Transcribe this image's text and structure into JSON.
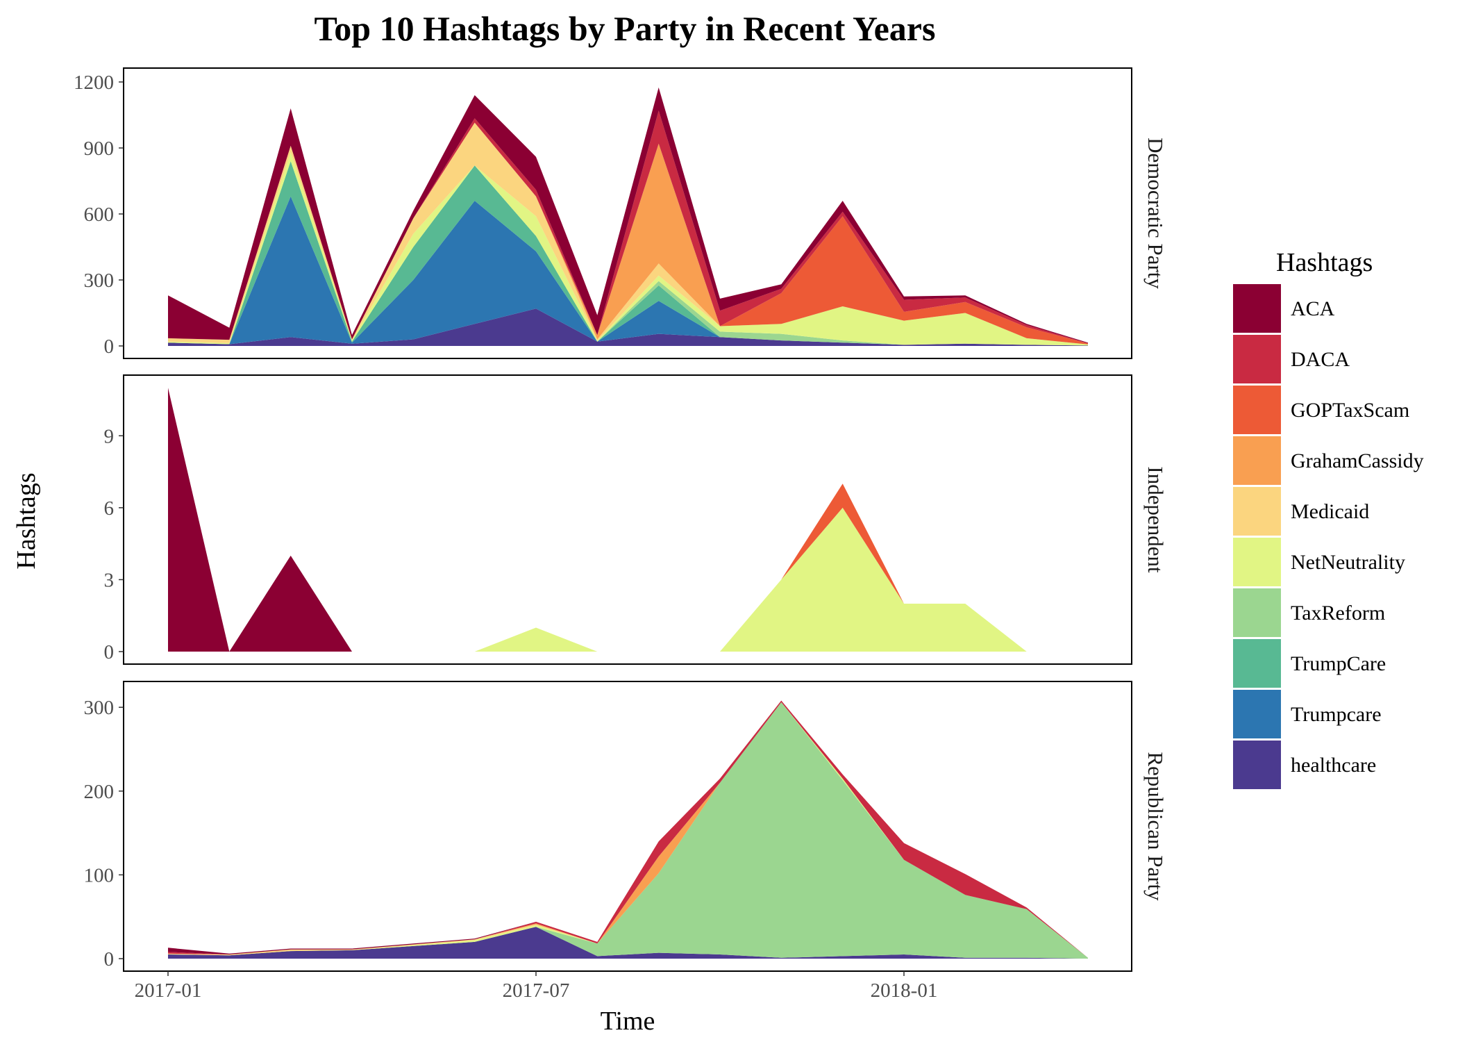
{
  "chart_data": {
    "type": "area",
    "stacked": true,
    "title": "Top 10 Hashtags by Party in Recent Years",
    "xlabel": "Time",
    "ylabel": "Hashtags",
    "x": [
      "2017-01",
      "2017-02",
      "2017-03",
      "2017-04",
      "2017-05",
      "2017-06",
      "2017-07",
      "2017-08",
      "2017-09",
      "2017-10",
      "2017-11",
      "2017-12",
      "2018-01",
      "2018-02",
      "2018-03",
      "2018-04"
    ],
    "x_ticks": [
      "2017-01",
      "2017-07",
      "2018-01"
    ],
    "legend": {
      "title": "Hashtags",
      "placement": "right"
    },
    "grid": false,
    "series_order": [
      "ACA",
      "DACA",
      "GOPTaxScam",
      "GrahamCassidy",
      "Medicaid",
      "NetNeutrality",
      "TaxReform",
      "TrumpCare",
      "Trumpcare",
      "healthcare"
    ],
    "colors": {
      "ACA": "#8b0033",
      "DACA": "#c92a42",
      "GOPTaxScam": "#ed5a36",
      "GrahamCassidy": "#f99f51",
      "Medicaid": "#fbd57f",
      "NetNeutrality": "#e1f584",
      "TaxReform": "#9bd690",
      "TrumpCare": "#58b993",
      "Trumpcare": "#2c76b1",
      "healthcare": "#4b3a8f"
    },
    "panels": [
      {
        "name": "Democratic Party",
        "ylim": [
          0,
          1260
        ],
        "yticks": [
          0,
          300,
          600,
          900,
          1200
        ],
        "series": [
          {
            "name": "healthcare",
            "values": [
              15,
              8,
              40,
              10,
              30,
              100,
              170,
              20,
              55,
              40,
              25,
              15,
              5,
              10,
              5,
              2
            ]
          },
          {
            "name": "Trumpcare",
            "values": [
              0,
              0,
              640,
              5,
              270,
              560,
              260,
              0,
              150,
              0,
              0,
              0,
              0,
              0,
              0,
              0
            ]
          },
          {
            "name": "TrumpCare",
            "values": [
              0,
              0,
              160,
              5,
              150,
              160,
              70,
              0,
              70,
              0,
              0,
              0,
              0,
              0,
              0,
              0
            ]
          },
          {
            "name": "TaxReform",
            "values": [
              0,
              0,
              0,
              0,
              0,
              0,
              0,
              0,
              20,
              25,
              30,
              10,
              0,
              0,
              0,
              0
            ]
          },
          {
            "name": "NetNeutrality",
            "values": [
              5,
              5,
              40,
              5,
              60,
              0,
              90,
              5,
              25,
              25,
              45,
              155,
              110,
              140,
              30,
              5
            ]
          },
          {
            "name": "Medicaid",
            "values": [
              15,
              15,
              30,
              5,
              70,
              195,
              90,
              5,
              55,
              0,
              0,
              0,
              0,
              0,
              0,
              0
            ]
          },
          {
            "name": "GrahamCassidy",
            "values": [
              0,
              0,
              0,
              0,
              0,
              0,
              0,
              20,
              545,
              0,
              0,
              0,
              0,
              0,
              0,
              0
            ]
          },
          {
            "name": "GOPTaxScam",
            "values": [
              0,
              0,
              0,
              0,
              0,
              0,
              0,
              0,
              0,
              0,
              140,
              410,
              40,
              50,
              50,
              5
            ]
          },
          {
            "name": "DACA",
            "values": [
              0,
              0,
              0,
              0,
              0,
              20,
              30,
              0,
              150,
              70,
              20,
              20,
              55,
              20,
              10,
              0
            ]
          },
          {
            "name": "ACA",
            "values": [
              195,
              55,
              170,
              20,
              35,
              105,
              150,
              90,
              105,
              55,
              20,
              50,
              15,
              10,
              5,
              3
            ]
          }
        ]
      },
      {
        "name": "Independent",
        "ylim": [
          0,
          11.5
        ],
        "yticks": [
          0,
          3,
          6,
          9
        ],
        "series": [
          {
            "name": "NetNeutrality",
            "values": [
              0,
              0,
              0,
              0,
              0,
              0,
              1,
              0,
              0,
              0,
              3,
              6,
              2,
              2,
              0,
              0
            ]
          },
          {
            "name": "GOPTaxScam",
            "values": [
              0,
              0,
              0,
              0,
              0,
              0,
              0,
              0,
              0,
              0,
              0,
              1,
              0,
              0,
              0,
              0
            ]
          },
          {
            "name": "ACA",
            "values": [
              11,
              0,
              4,
              0,
              0,
              0,
              0,
              0,
              0,
              0,
              0,
              0,
              0,
              0,
              0,
              0
            ]
          }
        ]
      },
      {
        "name": "Republican Party",
        "ylim": [
          0,
          330
        ],
        "yticks": [
          0,
          100,
          200,
          300
        ],
        "series": [
          {
            "name": "healthcare",
            "values": [
              5,
              4,
              9,
              10,
              15,
              20,
              38,
              3,
              7,
              5,
              1,
              3,
              5,
              1,
              1,
              0
            ]
          },
          {
            "name": "TaxReform",
            "values": [
              0,
              0,
              0,
              0,
              0,
              0,
              0,
              15,
              95,
              205,
              305,
              210,
              113,
              75,
              58,
              1
            ]
          },
          {
            "name": "NetNeutrality",
            "values": [
              0,
              0,
              0,
              0,
              1,
              2,
              2,
              0,
              0,
              0,
              0,
              2,
              0,
              0,
              0,
              0
            ]
          },
          {
            "name": "Medicaid",
            "values": [
              1,
              1,
              2,
              1,
              1,
              1,
              1,
              0,
              0,
              0,
              0,
              0,
              0,
              0,
              0,
              0
            ]
          },
          {
            "name": "GrahamCassidy",
            "values": [
              0,
              0,
              0,
              0,
              0,
              0,
              1,
              0,
              20,
              0,
              0,
              0,
              0,
              0,
              0,
              0
            ]
          },
          {
            "name": "DACA",
            "values": [
              2,
              0,
              0,
              0,
              0,
              0,
              2,
              2,
              18,
              5,
              2,
              5,
              20,
              25,
              2,
              0
            ]
          },
          {
            "name": "ACA",
            "values": [
              5,
              1,
              1,
              1,
              1,
              1,
              0,
              0,
              0,
              0,
              0,
              0,
              0,
              0,
              0,
              0
            ]
          }
        ]
      }
    ]
  }
}
